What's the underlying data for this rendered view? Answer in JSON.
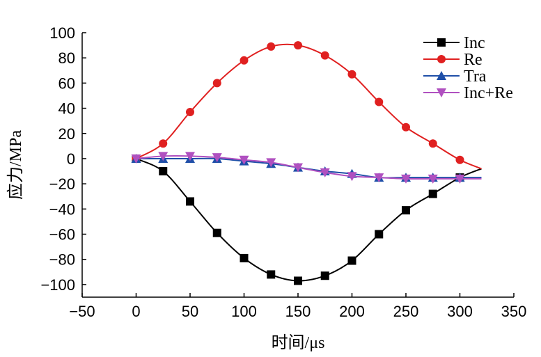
{
  "chart_data": {
    "type": "line",
    "xlabel": "时间/μs",
    "ylabel": "应力/MPa",
    "xlim": [
      -50,
      350
    ],
    "ylim": [
      -110,
      100
    ],
    "x_ticks": [
      -50,
      0,
      50,
      100,
      150,
      200,
      250,
      300,
      350
    ],
    "y_ticks": [
      -100,
      -80,
      -60,
      -40,
      -20,
      0,
      20,
      40,
      60,
      80,
      100
    ],
    "x_tick_labels": [
      "−50",
      "0",
      "50",
      "100",
      "150",
      "200",
      "250",
      "300",
      "350"
    ],
    "y_tick_labels": [
      "−100",
      "−80",
      "−60",
      "−40",
      "−20",
      "0",
      "20",
      "40",
      "60",
      "80",
      "100"
    ],
    "grid": false,
    "legend_position": "top-right",
    "series": [
      {
        "name": "Inc",
        "color": "#000000",
        "marker": "square",
        "x": [
          0,
          25,
          50,
          75,
          100,
          125,
          150,
          175,
          200,
          225,
          250,
          275,
          300,
          320
        ],
        "y": [
          0,
          -10,
          -34,
          -59,
          -79,
          -92,
          -97,
          -93,
          -81,
          -60,
          -41,
          -28,
          -15,
          -8
        ]
      },
      {
        "name": "Re",
        "color": "#e02020",
        "marker": "circle",
        "x": [
          0,
          25,
          50,
          75,
          100,
          125,
          150,
          175,
          200,
          225,
          250,
          275,
          300,
          320
        ],
        "y": [
          0,
          12,
          37,
          60,
          78,
          89,
          90,
          82,
          67,
          45,
          25,
          12,
          -1,
          -8
        ]
      },
      {
        "name": "Tra",
        "color": "#1f4fa8",
        "marker": "triangle-up",
        "x": [
          0,
          25,
          50,
          75,
          100,
          125,
          150,
          175,
          200,
          225,
          250,
          275,
          300,
          320
        ],
        "y": [
          0,
          0,
          0,
          0,
          -2,
          -4,
          -7,
          -10,
          -12,
          -15,
          -15,
          -15,
          -15,
          -15
        ]
      },
      {
        "name": "Inc+Re",
        "color": "#b050c0",
        "marker": "triangle-down",
        "x": [
          0,
          25,
          50,
          75,
          100,
          125,
          150,
          175,
          200,
          225,
          250,
          275,
          300,
          320
        ],
        "y": [
          0,
          2,
          2,
          1,
          -1,
          -3,
          -7,
          -11,
          -14,
          -15,
          -16,
          -16,
          -16,
          -16
        ]
      }
    ]
  }
}
